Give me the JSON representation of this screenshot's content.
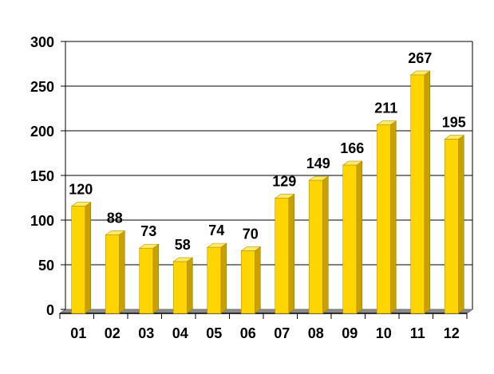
{
  "chart_data": {
    "type": "bar",
    "categories": [
      "01",
      "02",
      "03",
      "04",
      "05",
      "06",
      "07",
      "08",
      "09",
      "10",
      "11",
      "12"
    ],
    "values": [
      120,
      88,
      73,
      58,
      74,
      70,
      129,
      149,
      166,
      211,
      267,
      195
    ],
    "data_labels": [
      "120",
      "88",
      "73",
      "58",
      "74",
      "70",
      "129",
      "149",
      "166",
      "211",
      "267",
      "195"
    ],
    "y_ticks": [
      "0",
      "50",
      "100",
      "150",
      "200",
      "250",
      "300"
    ],
    "title": "",
    "xlabel": "",
    "ylabel": "",
    "ylim": [
      0,
      300
    ],
    "grid": true,
    "legend": "none",
    "style": "3d",
    "colors": {
      "bar_front": "#FFD500",
      "bar_side": "#C8A000",
      "bar_top": "#FFEA6A",
      "floor": "#8C8C8C",
      "gridline": "#000000",
      "background": "#FFFFFF"
    }
  }
}
